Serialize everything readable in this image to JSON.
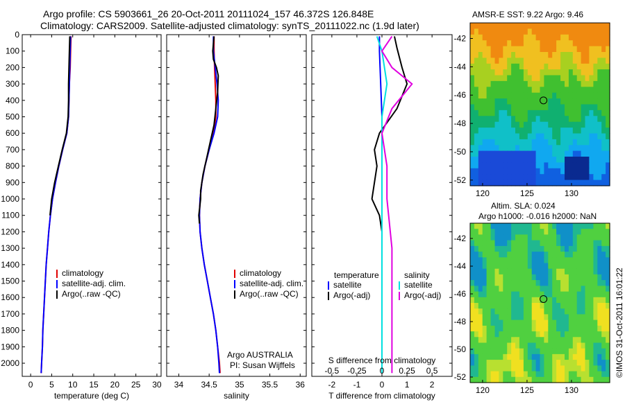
{
  "title_line1": "Argo profile: CS 5903661_26 20-Oct-2011 20111024_157 46.372S 126.848E",
  "title_line2": "Climatology: CARS2009. Satellite-adjusted climatology: synTS_20111022.nc (1.9d later)",
  "colors": {
    "climatology": "#e00000",
    "satellite": "#0000ff",
    "argo": "#000000",
    "sal_sat": "#00e0e0",
    "sal_argo": "#e000e0"
  },
  "chart_data": [
    {
      "type": "line",
      "panel": "temperature",
      "xlabel": "temperature (deg C)",
      "ylabel": "",
      "xlim": [
        -2,
        31
      ],
      "ylim": [
        2080,
        0
      ],
      "xticks": [
        "0",
        "5",
        "10",
        "15",
        "20",
        "25",
        "30"
      ],
      "yticks": [
        "0",
        "100",
        "200",
        "300",
        "400",
        "500",
        "600",
        "700",
        "800",
        "900",
        "1000",
        "1100",
        "1200",
        "1300",
        "1400",
        "1500",
        "1600",
        "1700",
        "1800",
        "1900",
        "2000"
      ],
      "legend": [
        "climatology",
        "satellite-adj. clim.",
        "Argo(..raw -QC)"
      ],
      "series": [
        {
          "name": "climatology",
          "points": [
            [
              9.6,
              10
            ],
            [
              9.5,
              100
            ],
            [
              9.4,
              200
            ],
            [
              9.2,
              300
            ],
            [
              9.1,
              400
            ],
            [
              9.0,
              500
            ],
            [
              8.6,
              600
            ],
            [
              7.6,
              700
            ],
            [
              6.7,
              800
            ],
            [
              5.9,
              900
            ],
            [
              5.2,
              1000
            ],
            [
              4.7,
              1100
            ],
            [
              4.3,
              1200
            ],
            [
              4.0,
              1300
            ],
            [
              3.7,
              1400
            ],
            [
              3.5,
              1500
            ],
            [
              3.3,
              1600
            ],
            [
              3.1,
              1700
            ],
            [
              2.9,
              1800
            ],
            [
              2.8,
              1900
            ],
            [
              2.6,
              2000
            ],
            [
              2.5,
              2060
            ]
          ]
        },
        {
          "name": "satellite-adj. clim.",
          "points": [
            [
              9.5,
              10
            ],
            [
              9.4,
              100
            ],
            [
              9.3,
              200
            ],
            [
              9.2,
              300
            ],
            [
              9.1,
              400
            ],
            [
              9.0,
              500
            ],
            [
              8.6,
              600
            ],
            [
              7.6,
              700
            ],
            [
              6.7,
              800
            ],
            [
              5.9,
              900
            ],
            [
              5.2,
              1000
            ],
            [
              4.7,
              1100
            ],
            [
              4.3,
              1200
            ],
            [
              4.0,
              1300
            ],
            [
              3.7,
              1400
            ],
            [
              3.5,
              1500
            ],
            [
              3.3,
              1600
            ],
            [
              3.1,
              1700
            ],
            [
              2.9,
              1800
            ],
            [
              2.8,
              1900
            ],
            [
              2.6,
              2000
            ],
            [
              2.5,
              2060
            ]
          ]
        },
        {
          "name": "Argo(..raw -QC)",
          "points": [
            [
              9.3,
              10
            ],
            [
              9.2,
              100
            ],
            [
              9.1,
              200
            ],
            [
              9.0,
              300
            ],
            [
              9.0,
              400
            ],
            [
              8.9,
              500
            ],
            [
              8.5,
              600
            ],
            [
              7.5,
              700
            ],
            [
              6.6,
              800
            ],
            [
              5.7,
              900
            ],
            [
              5.0,
              1000
            ],
            [
              4.6,
              1100
            ]
          ]
        }
      ],
      "annotation": ""
    },
    {
      "type": "line",
      "panel": "salinity",
      "xlabel": "salinity",
      "xlim": [
        33.8,
        36.1
      ],
      "ylim": [
        2080,
        0
      ],
      "xticks": [
        "34",
        "34.5",
        "35",
        "35.5",
        "36"
      ],
      "legend": [
        "climatology",
        "satellite-adj. clim.",
        "Argo(..raw -QC)"
      ],
      "series": [
        {
          "name": "climatology",
          "points": [
            [
              34.58,
              10
            ],
            [
              34.58,
              100
            ],
            [
              34.59,
              200
            ],
            [
              34.6,
              300
            ],
            [
              34.61,
              400
            ],
            [
              34.61,
              500
            ],
            [
              34.57,
              600
            ],
            [
              34.5,
              700
            ],
            [
              34.43,
              800
            ],
            [
              34.38,
              900
            ],
            [
              34.35,
              1000
            ],
            [
              34.34,
              1100
            ],
            [
              34.35,
              1200
            ],
            [
              34.38,
              1300
            ],
            [
              34.42,
              1400
            ],
            [
              34.47,
              1500
            ],
            [
              34.52,
              1600
            ],
            [
              34.57,
              1700
            ],
            [
              34.61,
              1800
            ],
            [
              34.64,
              1900
            ],
            [
              34.67,
              2000
            ],
            [
              34.68,
              2060
            ]
          ]
        },
        {
          "name": "satellite-adj. clim.",
          "points": [
            [
              34.57,
              10
            ],
            [
              34.57,
              100
            ],
            [
              34.6,
              200
            ],
            [
              34.63,
              300
            ],
            [
              34.65,
              400
            ],
            [
              34.64,
              500
            ],
            [
              34.58,
              600
            ],
            [
              34.5,
              700
            ],
            [
              34.43,
              800
            ],
            [
              34.38,
              900
            ],
            [
              34.35,
              1000
            ],
            [
              34.34,
              1100
            ],
            [
              34.35,
              1200
            ],
            [
              34.38,
              1300
            ],
            [
              34.42,
              1400
            ],
            [
              34.47,
              1500
            ],
            [
              34.52,
              1600
            ],
            [
              34.57,
              1700
            ],
            [
              34.61,
              1800
            ],
            [
              34.64,
              1900
            ],
            [
              34.66,
              2000
            ],
            [
              34.67,
              2060
            ]
          ]
        },
        {
          "name": "Argo(..raw -QC)",
          "points": [
            [
              34.58,
              10
            ],
            [
              34.56,
              100
            ],
            [
              34.57,
              150
            ],
            [
              34.62,
              200
            ],
            [
              34.65,
              250
            ],
            [
              34.64,
              350
            ],
            [
              34.61,
              450
            ],
            [
              34.58,
              550
            ],
            [
              34.52,
              650
            ],
            [
              34.46,
              750
            ],
            [
              34.4,
              850
            ],
            [
              34.36,
              950
            ],
            [
              34.36,
              1000
            ],
            [
              34.33,
              1100
            ],
            [
              34.34,
              1150
            ]
          ]
        }
      ],
      "annotation": [
        "Argo AUSTRALIA",
        "PI: Susan Wijffels"
      ]
    },
    {
      "type": "line",
      "panel": "difference",
      "xlabel": "T difference from climatology",
      "xlabel_top": "S difference from climatology",
      "xlim": [
        -2.8,
        2.8
      ],
      "ylim": [
        2080,
        0
      ],
      "xticks": [
        "-2",
        "-1",
        "0",
        "1",
        "2"
      ],
      "xticks_s": [
        "-0.5",
        "-0.25",
        "0",
        "0.25",
        "0.5"
      ],
      "legend_t_title": "temperature",
      "legend_s_title": "salinity",
      "legend": [
        "satellite",
        "Argo(-adj)",
        "satellite",
        "Argo(-adj)"
      ],
      "series": [
        {
          "name": "satellite",
          "points": [
            [
              -0.1,
              10
            ],
            [
              -0.1,
              100
            ],
            [
              -0.05,
              300
            ],
            [
              0,
              500
            ],
            [
              0,
              1000
            ],
            [
              0,
              1500
            ],
            [
              0,
              2060
            ]
          ]
        },
        {
          "name": "Argo(-adj)",
          "points": [
            [
              0.5,
              10
            ],
            [
              0.6,
              80
            ],
            [
              0.8,
              200
            ],
            [
              1.0,
              300
            ],
            [
              0.6,
              450
            ],
            [
              -0.1,
              600
            ],
            [
              -0.3,
              700
            ],
            [
              -0.2,
              800
            ],
            [
              -0.3,
              900
            ],
            [
              -0.4,
              1000
            ],
            [
              -0.1,
              1100
            ],
            [
              0,
              1200
            ]
          ]
        },
        {
          "name": "satellite",
          "points": [
            [
              -0.05,
              10
            ],
            [
              0,
              100
            ],
            [
              0.05,
              300
            ],
            [
              0,
              500
            ],
            [
              0,
              1000
            ],
            [
              0,
              1500
            ],
            [
              0,
              2060
            ]
          ]
        },
        {
          "name": "Argo(-adj)",
          "points": [
            [
              0.1,
              10
            ],
            [
              0,
              100
            ],
            [
              0.1,
              200
            ],
            [
              0.3,
              300
            ],
            [
              0.1,
              450
            ],
            [
              0,
              600
            ],
            [
              0.05,
              800
            ],
            [
              0.05,
              1000
            ],
            [
              0.1,
              1300
            ],
            [
              0.1,
              1600
            ],
            [
              0.1,
              2060
            ]
          ]
        }
      ]
    },
    {
      "type": "heatmap",
      "panel": "sst_map",
      "title": "AMSR-E SST: 9.22  Argo: 9.46",
      "xticks": [
        "120",
        "125",
        "130"
      ],
      "yticks": [
        "-42",
        "-44",
        "-46",
        "-48",
        "-50",
        "-52"
      ],
      "marker": [
        126.848,
        -46.372
      ]
    },
    {
      "type": "heatmap",
      "panel": "sla_map",
      "title_line1": "Altim. SLA: 0.024",
      "title_line2": "Argo h1000: -0.016 h2000: NaN",
      "xticks": [
        "120",
        "125",
        "130"
      ],
      "yticks": [
        "-42",
        "-44",
        "-46",
        "-48",
        "-50",
        "-52"
      ],
      "marker": [
        126.848,
        -46.372
      ]
    }
  ],
  "watermark": "©IMOS 31-Oct-2011 16:01:22"
}
